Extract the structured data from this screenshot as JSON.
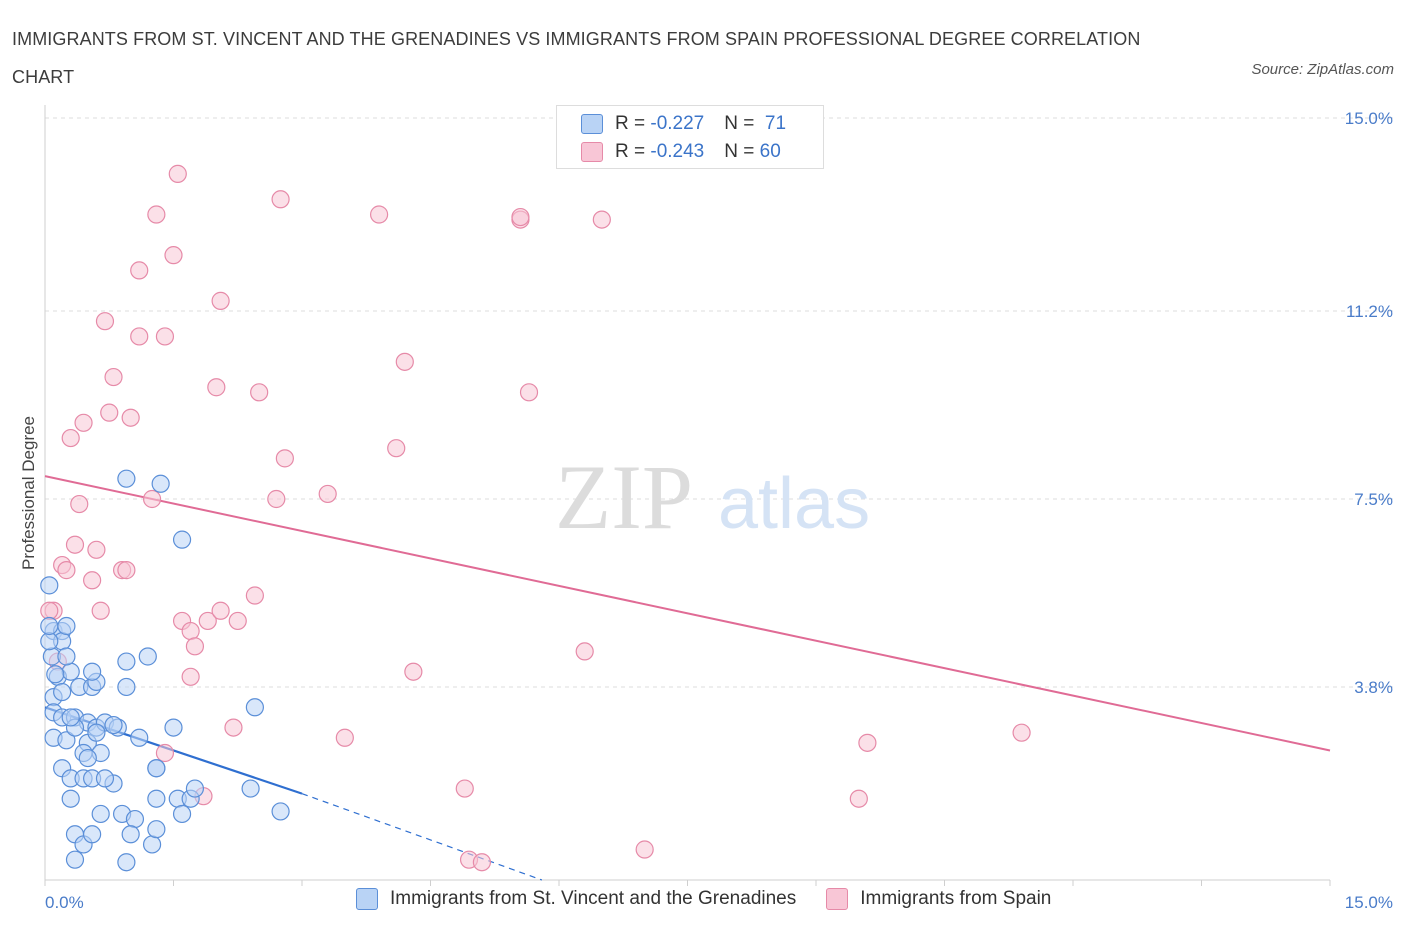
{
  "header": {
    "title": "IMMIGRANTS FROM ST. VINCENT AND THE GRENADINES VS IMMIGRANTS FROM SPAIN PROFESSIONAL DEGREE CORRELATION CHART",
    "source": "Source: ZipAtlas.com"
  },
  "legend": {
    "row1": {
      "r_label": "R = ",
      "r_value": "-0.227",
      "n_label": "N = ",
      "n_value": " 71"
    },
    "row2": {
      "r_label": "R = ",
      "r_value": "-0.243",
      "n_label": "N = ",
      "n_value": "60"
    }
  },
  "bottom_legend": {
    "series1": "Immigrants from St. Vincent and the Grenadines",
    "series2": "Immigrants from Spain"
  },
  "watermark": {
    "zip": "ZIP",
    "atlas": "atlas"
  },
  "colors": {
    "blue_fill": "#b9d3f5",
    "blue_stroke": "#5b8fd8",
    "blue_line": "#2f6fd0",
    "pink_fill": "#f8c6d6",
    "pink_stroke": "#e68aa8",
    "pink_line": "#e06b95",
    "tick_color": "#4a7cc9"
  },
  "chart_data": {
    "type": "scatter",
    "title": "IMMIGRANTS FROM ST. VINCENT AND THE GRENADINES VS IMMIGRANTS FROM SPAIN PROFESSIONAL DEGREE CORRELATION CHART",
    "xlabel": "",
    "ylabel": "Professional Degree",
    "xlim": [
      0,
      15
    ],
    "ylim": [
      0,
      15
    ],
    "x_tick_labels": [
      "0.0%",
      "15.0%"
    ],
    "y_ticks": [
      3.8,
      7.5,
      11.2,
      15.0
    ],
    "y_tick_labels": [
      "3.8%",
      "7.5%",
      "11.2%",
      "15.0%"
    ],
    "grid": "horizontal dashed",
    "legend_position": "top-center",
    "series": [
      {
        "name": "Immigrants from St. Vincent and the Grenadines",
        "color": "#5b8fd8",
        "R": -0.227,
        "N": 71,
        "trend": {
          "x": [
            0,
            3.0
          ],
          "y": [
            3.4,
            1.7
          ],
          "dashed_extension_to": [
            5.8,
            0.0
          ]
        },
        "points": [
          [
            0.05,
            5.8
          ],
          [
            0.1,
            4.9
          ],
          [
            0.08,
            4.4
          ],
          [
            0.2,
            4.9
          ],
          [
            0.2,
            4.7
          ],
          [
            0.25,
            5.0
          ],
          [
            0.05,
            4.7
          ],
          [
            0.15,
            4.0
          ],
          [
            0.3,
            4.1
          ],
          [
            0.25,
            4.4
          ],
          [
            0.1,
            3.6
          ],
          [
            0.2,
            3.7
          ],
          [
            0.4,
            3.8
          ],
          [
            0.55,
            3.8
          ],
          [
            0.6,
            3.9
          ],
          [
            0.55,
            4.1
          ],
          [
            0.1,
            3.3
          ],
          [
            0.2,
            3.2
          ],
          [
            0.35,
            3.2
          ],
          [
            0.5,
            3.1
          ],
          [
            0.6,
            3.0
          ],
          [
            0.7,
            3.1
          ],
          [
            0.85,
            3.0
          ],
          [
            0.1,
            2.8
          ],
          [
            0.25,
            2.75
          ],
          [
            0.35,
            3.0
          ],
          [
            0.5,
            2.7
          ],
          [
            0.6,
            2.9
          ],
          [
            0.45,
            2.5
          ],
          [
            0.65,
            2.5
          ],
          [
            0.5,
            2.4
          ],
          [
            0.2,
            2.2
          ],
          [
            0.3,
            2.0
          ],
          [
            0.45,
            2.0
          ],
          [
            0.55,
            2.0
          ],
          [
            0.8,
            1.9
          ],
          [
            0.3,
            1.6
          ],
          [
            0.65,
            1.3
          ],
          [
            0.9,
            1.3
          ],
          [
            0.35,
            0.9
          ],
          [
            0.45,
            0.7
          ],
          [
            0.55,
            0.9
          ],
          [
            1.05,
            1.2
          ],
          [
            1.0,
            0.9
          ],
          [
            1.25,
            0.7
          ],
          [
            1.3,
            1.0
          ],
          [
            0.35,
            0.4
          ],
          [
            0.95,
            0.35
          ],
          [
            0.95,
            7.9
          ],
          [
            1.35,
            7.8
          ],
          [
            1.6,
            6.7
          ],
          [
            1.2,
            4.4
          ],
          [
            0.95,
            4.3
          ],
          [
            0.95,
            3.8
          ],
          [
            1.1,
            2.8
          ],
          [
            1.5,
            3.0
          ],
          [
            1.3,
            2.2
          ],
          [
            1.3,
            2.2
          ],
          [
            1.3,
            1.6
          ],
          [
            1.55,
            1.6
          ],
          [
            1.7,
            1.6
          ],
          [
            1.75,
            1.8
          ],
          [
            1.6,
            1.3
          ],
          [
            2.45,
            3.4
          ],
          [
            2.4,
            1.8
          ],
          [
            2.75,
            1.35
          ],
          [
            0.05,
            5.0
          ],
          [
            0.12,
            4.05
          ],
          [
            0.3,
            3.2
          ],
          [
            0.8,
            3.05
          ],
          [
            0.7,
            2.0
          ]
        ]
      },
      {
        "name": "Immigrants from Spain",
        "color": "#e68aa8",
        "R": -0.243,
        "N": 60,
        "trend": {
          "x": [
            0,
            15
          ],
          "y": [
            7.95,
            2.55
          ]
        },
        "points": [
          [
            0.1,
            5.3
          ],
          [
            0.15,
            4.3
          ],
          [
            0.2,
            6.2
          ],
          [
            0.25,
            6.1
          ],
          [
            0.3,
            8.7
          ],
          [
            0.35,
            6.6
          ],
          [
            0.4,
            7.4
          ],
          [
            0.45,
            9.0
          ],
          [
            0.55,
            5.9
          ],
          [
            0.6,
            6.5
          ],
          [
            0.65,
            5.3
          ],
          [
            0.7,
            11.0
          ],
          [
            0.8,
            9.9
          ],
          [
            0.9,
            6.1
          ],
          [
            0.95,
            6.1
          ],
          [
            0.75,
            9.2
          ],
          [
            1.0,
            9.1
          ],
          [
            1.1,
            10.7
          ],
          [
            1.1,
            12.0
          ],
          [
            1.25,
            7.5
          ],
          [
            1.4,
            10.7
          ],
          [
            1.3,
            13.1
          ],
          [
            1.5,
            12.3
          ],
          [
            1.55,
            13.9
          ],
          [
            1.6,
            5.1
          ],
          [
            1.7,
            4.9
          ],
          [
            1.75,
            4.6
          ],
          [
            1.7,
            4.0
          ],
          [
            1.9,
            5.1
          ],
          [
            2.0,
            9.7
          ],
          [
            2.05,
            5.3
          ],
          [
            2.05,
            11.4
          ],
          [
            2.25,
            5.1
          ],
          [
            2.5,
            9.6
          ],
          [
            2.45,
            5.6
          ],
          [
            2.75,
            13.4
          ],
          [
            2.8,
            8.3
          ],
          [
            2.7,
            7.5
          ],
          [
            3.3,
            7.6
          ],
          [
            3.5,
            2.8
          ],
          [
            3.9,
            13.1
          ],
          [
            4.1,
            8.5
          ],
          [
            4.2,
            10.2
          ],
          [
            4.3,
            4.1
          ],
          [
            4.9,
            1.8
          ],
          [
            4.95,
            0.4
          ],
          [
            5.1,
            0.35
          ],
          [
            5.55,
            13.0
          ],
          [
            5.55,
            13.05
          ],
          [
            5.65,
            9.6
          ],
          [
            6.3,
            4.5
          ],
          [
            6.5,
            13.0
          ],
          [
            7.0,
            0.6
          ],
          [
            9.6,
            2.7
          ],
          [
            9.5,
            1.6
          ],
          [
            11.4,
            2.9
          ],
          [
            2.2,
            3.0
          ],
          [
            1.4,
            2.5
          ],
          [
            1.85,
            1.65
          ],
          [
            0.05,
            5.3
          ]
        ]
      }
    ]
  }
}
